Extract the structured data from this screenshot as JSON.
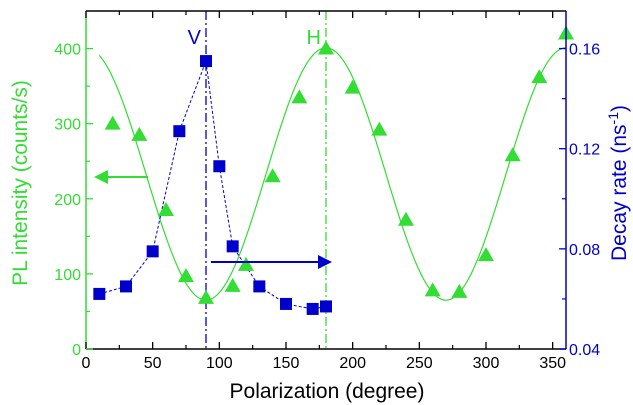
{
  "chart_data": {
    "type": "scatter",
    "xlabel": "Polarization (degree)",
    "ylabel_left": "PL intensity (counts/s)",
    "ylabel_right": "Decay rate (ns",
    "ylabel_right_sup": "-1",
    "ylabel_right_close": ")",
    "xlim": [
      0,
      360
    ],
    "ylim_left": [
      0,
      450
    ],
    "ylim_right": [
      0.04,
      0.175
    ],
    "x_ticks": [
      "0",
      "50",
      "100",
      "150",
      "200",
      "250",
      "300",
      "350"
    ],
    "y_left_ticks": [
      "0",
      "100",
      "200",
      "300",
      "400"
    ],
    "y_right_ticks": [
      "0.04",
      "0.08",
      "0.12",
      "0.16"
    ],
    "vertical_lines": [
      {
        "label": "V",
        "x": 90,
        "color": "#0000cc"
      },
      {
        "label": "H",
        "x": 180,
        "color": "#33dd33"
      }
    ],
    "colors": {
      "pl": "#33dd33",
      "decay": "#0000cc",
      "axis": "#000000"
    },
    "series": [
      {
        "marker": "triangle",
        "axis": "left",
        "x": [
          20,
          40,
          60,
          75,
          90,
          110,
          120,
          140,
          160,
          180,
          200,
          220,
          240,
          260,
          280,
          300,
          320,
          340,
          360
        ],
        "y": [
          300,
          285,
          185,
          97,
          68,
          84,
          112,
          230,
          335,
          400,
          348,
          292,
          172,
          78,
          76,
          125,
          258,
          362,
          420
        ]
      },
      {
        "marker": "square",
        "axis": "right",
        "x": [
          10,
          30,
          50,
          70,
          90,
          100,
          110,
          130,
          150,
          170,
          180
        ],
        "y": [
          0.062,
          0.065,
          0.079,
          0.127,
          0.155,
          0.113,
          0.081,
          0.065,
          0.058,
          0.056,
          0.057
        ]
      }
    ],
    "fit_curve": {
      "axis": "left",
      "a": 233,
      "b": 168,
      "period": 180,
      "phase_deg": 180,
      "x_range": [
        10,
        360
      ]
    }
  }
}
